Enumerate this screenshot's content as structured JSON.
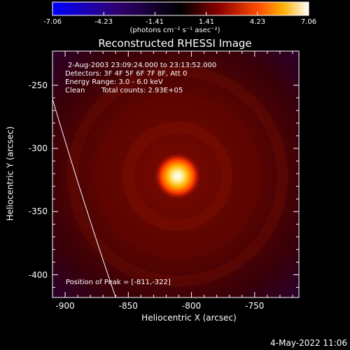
{
  "colorbar": {
    "ticks": [
      "-7.06",
      "-4.23",
      "-1.41",
      "1.41",
      "4.23",
      "7.06"
    ],
    "unit_label": "(photons cm⁻² s⁻¹ asec⁻²)"
  },
  "chart_data": {
    "type": "heatmap",
    "title": "Reconstructed RHESSI Image",
    "xlabel": "Heliocentric X (arcsec)",
    "ylabel": "Heliocentric Y (arcsec)",
    "xlim": [
      -910,
      -715
    ],
    "ylim": [
      -418,
      -223
    ],
    "x_ticks": [
      "-900",
      "-850",
      "-800",
      "-750"
    ],
    "x_tick_values": [
      -900,
      -850,
      -800,
      -750
    ],
    "y_ticks": [
      "-250",
      "-300",
      "-350",
      "-400"
    ],
    "y_tick_values": [
      -250,
      -300,
      -350,
      -400
    ],
    "peak": [
      -811,
      -322
    ],
    "limb_points": [
      [
        -910,
        -261
      ],
      [
        -885,
        -345
      ],
      [
        -860,
        -418
      ]
    ],
    "color_range": [
      -7.06,
      7.06
    ],
    "annotations": {
      "time_range": "2-Aug-2003 23:09:24.000 to 23:13:52.000",
      "detectors": "Detectors: 3F 4F 5F 6F 7F 8F, Att 0",
      "energy": "Energy Range: 3.0 - 6.0 keV",
      "clean": "Clean",
      "total_counts": "Total counts: 2.93E+05",
      "peak_position": "Position of Peak = [-811,-322]"
    }
  },
  "footer": {
    "date": "4-May-2022 11:06"
  }
}
